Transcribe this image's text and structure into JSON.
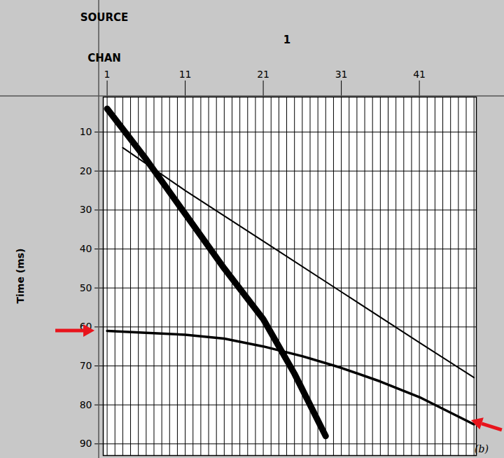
{
  "chart_data": {
    "type": "line",
    "header": {
      "source_label": "SOURCE",
      "source": "1",
      "channel_label": "CHAN"
    },
    "y_label": "Time (ms)",
    "panel_label": "(b)",
    "xlim": [
      0.5,
      48.3
    ],
    "xticks": [
      1,
      11,
      21,
      31,
      41
    ],
    "ylim": [
      1,
      93
    ],
    "yticks": [
      10,
      20,
      30,
      40,
      50,
      60,
      70,
      80,
      90
    ],
    "grid": true,
    "channels": [
      1,
      2,
      3,
      4,
      5,
      6,
      7,
      8,
      9,
      10,
      11,
      12,
      13,
      14,
      15,
      16,
      17,
      18,
      19,
      20,
      21,
      22,
      23,
      24,
      25,
      26,
      27,
      28,
      29,
      30,
      31,
      32,
      33,
      34,
      35,
      36,
      37,
      38,
      39,
      40,
      41,
      42,
      43,
      44,
      45,
      46,
      47,
      48
    ],
    "series": [
      {
        "color": "#000000",
        "line_style": "thick",
        "x": [
          1,
          6,
          11,
          16,
          21,
          25,
          29
        ],
        "values": [
          4,
          17,
          31,
          45,
          58,
          72,
          88
        ]
      },
      {
        "color": "#000000",
        "line_style": "thin",
        "x": [
          3,
          11,
          21,
          31,
          41,
          48
        ],
        "values": [
          14,
          25,
          38,
          51,
          64,
          73
        ]
      },
      {
        "color": "#000000",
        "line_style": "medium",
        "x": [
          1,
          6,
          11,
          16,
          21,
          26,
          31,
          36,
          41,
          48
        ],
        "values": [
          61,
          61.5,
          62,
          63,
          65,
          67.5,
          70.5,
          74,
          78,
          85
        ]
      }
    ],
    "arrows": [
      {
        "x": 0.5,
        "y": 61,
        "color": "#e8141c"
      },
      {
        "x": 47.3,
        "y": 84,
        "color": "#e8141c"
      }
    ]
  }
}
